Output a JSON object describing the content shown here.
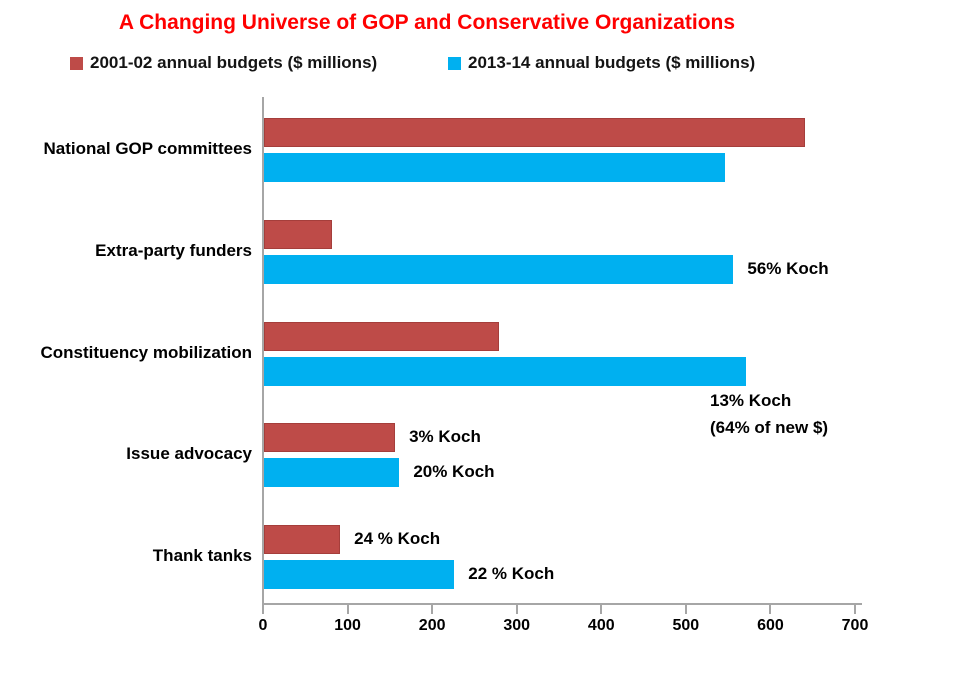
{
  "title": "A Changing Universe of GOP and Conservative Organizations",
  "legend": [
    {
      "label": "2001-02 annual budgets ($ millions)",
      "color": "#BE4B48"
    },
    {
      "label": "2013-14 annual budgets ($ millions)",
      "color": "#00B0F0"
    }
  ],
  "colors": {
    "title_red": "#FF0000",
    "bar_red": "#BE4B48",
    "bar_blue": "#00B0F0",
    "axis_gray": "#A6A6A6",
    "text_black": "#000000"
  },
  "chart_data": {
    "type": "bar",
    "orientation": "horizontal",
    "title": "A Changing Universe of GOP and Conservative Organizations",
    "categories": [
      "National GOP committees",
      "Extra-party funders",
      "Constituency mobilization",
      "Issue advocacy",
      "Thank tanks"
    ],
    "series": [
      {
        "name": "2001-02 annual budgets ($ millions)",
        "color": "#BE4B48",
        "values": [
          640,
          80,
          278,
          155,
          90
        ],
        "bar_labels": [
          "",
          "",
          "",
          "3% Koch",
          "24 % Koch"
        ]
      },
      {
        "name": "2013-14 annual budgets ($ millions)",
        "color": "#00B0F0",
        "values": [
          545,
          555,
          570,
          160,
          225
        ],
        "bar_labels": [
          "",
          "56% Koch",
          "",
          "20% Koch",
          "22 % Koch"
        ]
      }
    ],
    "annotations": [
      {
        "lines": [
          "13% Koch",
          "(64% of new $)"
        ],
        "x": 710,
        "y": 391
      }
    ],
    "xlabel": "",
    "ylabel": "",
    "xlim": [
      0,
      700
    ],
    "x_ticks": [
      0,
      100,
      200,
      300,
      400,
      500,
      600,
      700
    ],
    "grid": false,
    "legend_position": "top"
  }
}
